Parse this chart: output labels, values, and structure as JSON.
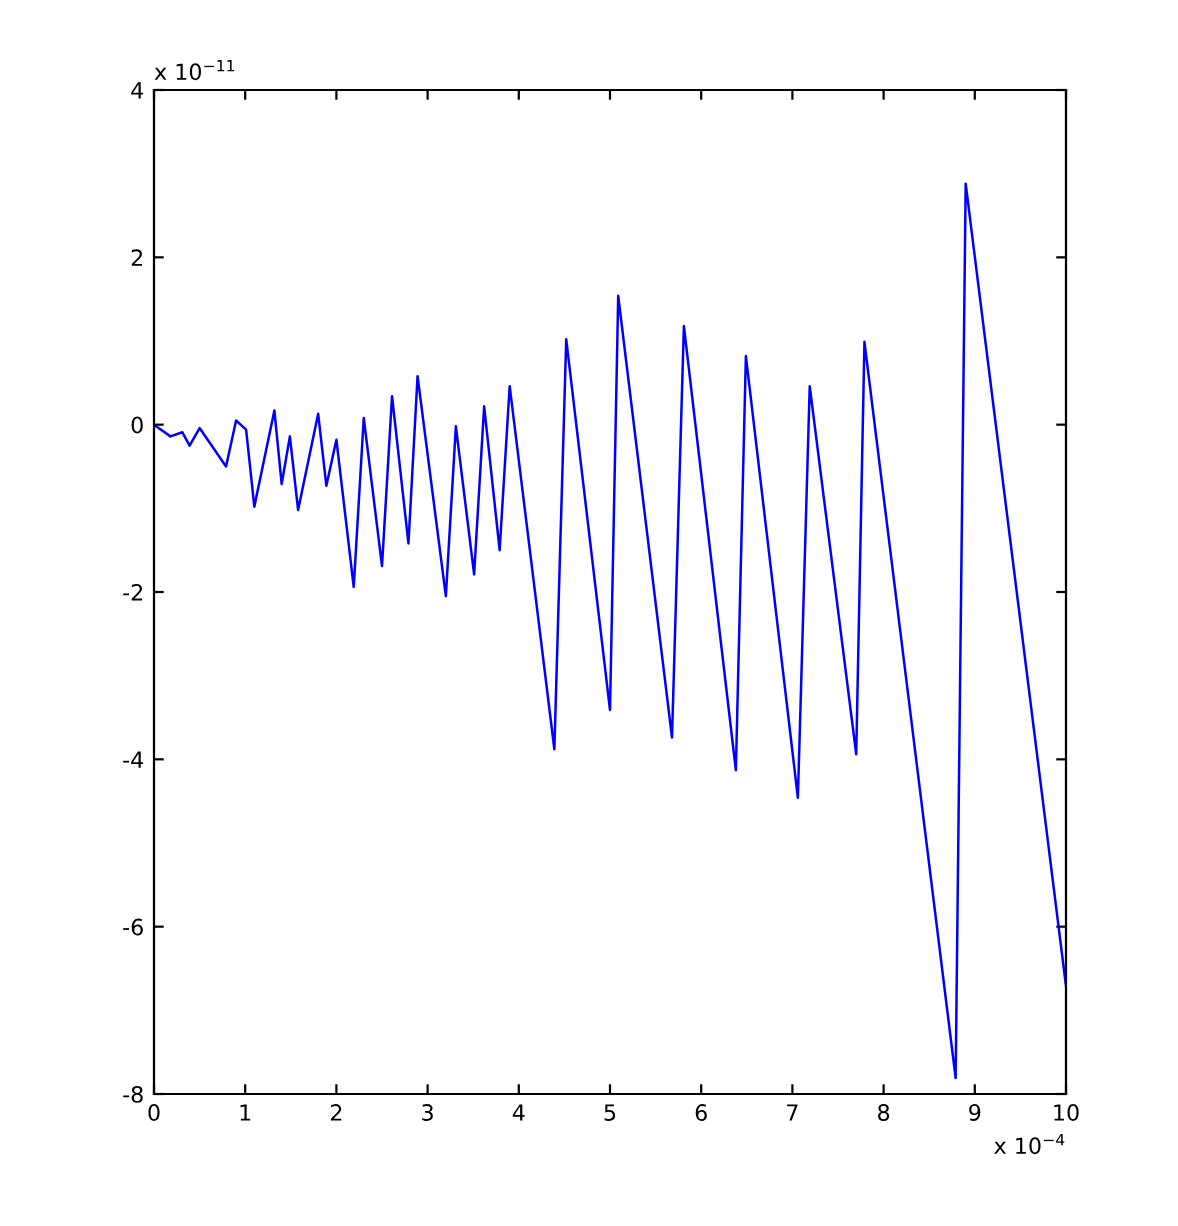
{
  "chart_data": {
    "type": "line",
    "x": [
      0,
      0.18,
      0.31,
      0.39,
      0.5,
      0.79,
      0.9,
      1.01,
      1.1,
      1.32,
      1.4,
      1.49,
      1.58,
      1.8,
      1.89,
      2.0,
      2.19,
      2.3,
      2.5,
      2.61,
      2.79,
      2.89,
      3.2,
      3.31,
      3.51,
      3.62,
      3.79,
      3.9,
      4.39,
      4.52,
      5.0,
      5.09,
      5.68,
      5.81,
      6.38,
      6.49,
      7.06,
      7.19,
      7.7,
      7.79,
      8.79,
      8.9,
      10.0
    ],
    "series": [
      {
        "color": "#0000ff",
        "values": [
          0,
          -0.14,
          -0.09,
          -0.25,
          -0.04,
          -0.5,
          0.05,
          -0.06,
          -0.98,
          0.17,
          -0.71,
          -0.14,
          -1.02,
          0.13,
          -0.73,
          -0.18,
          -1.94,
          0.08,
          -1.69,
          0.34,
          -1.42,
          0.58,
          -2.05,
          -0.02,
          -1.79,
          0.22,
          -1.5,
          0.46,
          -3.88,
          1.02,
          -3.41,
          1.54,
          -3.74,
          1.18,
          -4.13,
          0.82,
          -4.46,
          0.46,
          -3.94,
          0.99,
          -7.81,
          2.88,
          -6.71
        ]
      }
    ],
    "xlim": [
      0,
      10
    ],
    "ylim": [
      -8,
      4
    ],
    "xticks": [
      0,
      1,
      2,
      3,
      4,
      5,
      6,
      7,
      8,
      9,
      10
    ],
    "yticks": [
      -8,
      -6,
      -4,
      -2,
      0,
      2,
      4
    ],
    "annotations": [
      "x 10$^{−4}$",
      "x 10$^{−11}$"
    ],
    "grid": false,
    "legend": false,
    "marker": "none",
    "line_style": "solid"
  }
}
